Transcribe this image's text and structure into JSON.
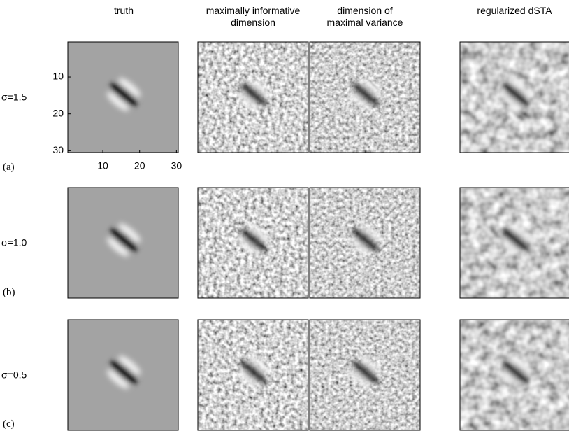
{
  "columns": [
    "truth",
    "maximally informative\ndimension",
    "dimension of\nmaximal variance",
    "regularized dSTA"
  ],
  "rows": [
    {
      "label": "σ=1.5",
      "tag": "(a)"
    },
    {
      "label": "σ=1.0",
      "tag": "(b)"
    },
    {
      "label": "σ=0.5",
      "tag": "(c)"
    }
  ],
  "axes": {
    "yticks": [
      10,
      20,
      30
    ],
    "xticks": [
      10,
      20,
      30
    ]
  }
}
